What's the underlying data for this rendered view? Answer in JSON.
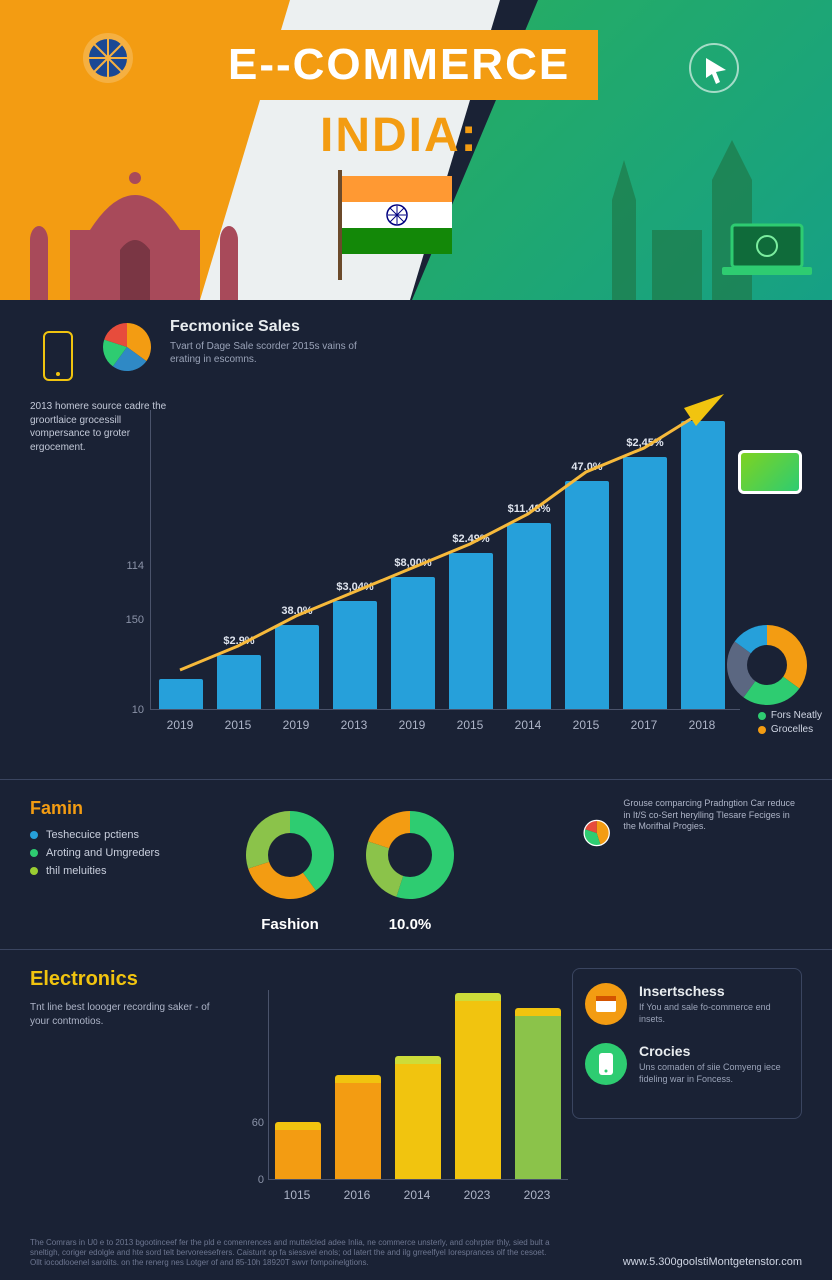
{
  "hero": {
    "title": "E--COMMERCE",
    "subtitle": "INDIA:",
    "colors": {
      "orange": "#f39c12",
      "white": "#ecf0f1",
      "green": "#27ae60",
      "navy": "#1a2235"
    }
  },
  "section1": {
    "heading": "Fecmonice Sales",
    "subtext": "Tvart of Dage Sale scorder 2015s vains of erating in escomns.",
    "sidetext": "2013 homere source cadre the groortlaice grocessill vompersance to groter ergocement.",
    "pie_top": {
      "slices": [
        35,
        25,
        20,
        20
      ],
      "colors": [
        "#f39c12",
        "#2f89c5",
        "#2ecc71",
        "#e74c3c"
      ]
    },
    "chart": {
      "type": "bar",
      "bar_color": "#26a0da",
      "categories": [
        "2019",
        "2015",
        "2019",
        "2013",
        "2019",
        "2015",
        "2014",
        "2015",
        "2017",
        "2018"
      ],
      "heights_pct": [
        10,
        18,
        28,
        36,
        44,
        52,
        62,
        76,
        84,
        96
      ],
      "labels": [
        "",
        "$2.9%",
        "38.0%",
        "$3,04%",
        "$8,00%",
        "$2.49%",
        "$11,48%",
        "47.0%",
        "$2,45%",
        ""
      ],
      "yticks": [
        {
          "v": "10",
          "p": 0
        },
        {
          "v": "150",
          "p": 30
        },
        {
          "v": "114",
          "p": 48
        }
      ],
      "arrow_color": "#f1c40f",
      "xlim": [
        0,
        10
      ],
      "ylim_pct": [
        0,
        100
      ]
    },
    "donut_right": {
      "slices": [
        35,
        25,
        25,
        15
      ],
      "colors": [
        "#f39c12",
        "#2ecc71",
        "#5b6781",
        "#26a0da"
      ]
    },
    "legend_right": [
      {
        "c": "#2ecc71",
        "t": "Fors Neatly"
      },
      {
        "c": "#f39c12",
        "t": "Grocelles"
      }
    ]
  },
  "section2": {
    "heading": "Famin",
    "heading_color": "#f39c12",
    "legend": [
      {
        "c": "#26a0da",
        "t": "Teshecuice pctiens"
      },
      {
        "c": "#2ecc71",
        "t": "Aroting and Umgreders"
      },
      {
        "c": "#9acd32",
        "t": "thil meluities"
      }
    ],
    "donutA": {
      "slices": [
        40,
        30,
        30
      ],
      "colors": [
        "#2ecc71",
        "#f39c12",
        "#8bc34a"
      ],
      "label": "Fashion"
    },
    "donutB": {
      "slices": [
        55,
        25,
        20
      ],
      "colors": [
        "#2ecc71",
        "#8bc34a",
        "#f39c12"
      ],
      "label": "10.0%"
    },
    "clock": {
      "colors": [
        "#f39c12",
        "#2ecc71",
        "#e74c3c"
      ]
    },
    "right_text": "Grouse comparcing Pradngtion Car reduce in It/S co-Sert herylling Tlesare Feciges in the Morifhal Progies."
  },
  "section3": {
    "heading": "Electronics",
    "heading_color": "#f1c40f",
    "subtext": "Tnt line best loooger recording saker - of your contmotios.",
    "chart2": {
      "type": "bar",
      "categories": [
        "1015",
        "2016",
        "2014",
        "2023",
        "2023"
      ],
      "heights_pct": [
        30,
        55,
        65,
        98,
        90
      ],
      "colors": [
        "#f39c12",
        "#f39c12",
        "#f1c40f",
        "#f1c40f",
        "#8bc34a"
      ],
      "tops": [
        "#f1c40f",
        "#f1c40f",
        "#cddc39",
        "#cddc39",
        "#f1c40f"
      ],
      "yticks": [
        {
          "v": "0",
          "p": 0
        },
        {
          "v": "60",
          "p": 30
        }
      ]
    },
    "cards": [
      {
        "ic_bg": "#f39c12",
        "title": "Insertschess",
        "text": "If You and sale fo-commerce end insets."
      },
      {
        "ic_bg": "#2ecc71",
        "title": "Crocies",
        "text": "Uns comaden of siie Comyeng iece fideling war in Foncess."
      }
    ]
  },
  "footer": {
    "disclaimer": "The Comrars in U0 e to 2013 bgootinceef fer the pld e comenrences and muttelcled adee Inlia, ne commerce unsterly, and cohrpter thly, sied bult a sneltigh, coriger edolgle and hte sord telt bervoreesefrers. Caistunt op fa siessvel enols; od latert the and ilg grreelfyel Ioresprances olf the cesoet. Ollt iocodlooenel sarolits. on the renerg nes Lotger of and 85-10h 18920T swvr fompoinelgtions.",
    "url": "www.5.300goolstiMontgetenstor.com"
  }
}
